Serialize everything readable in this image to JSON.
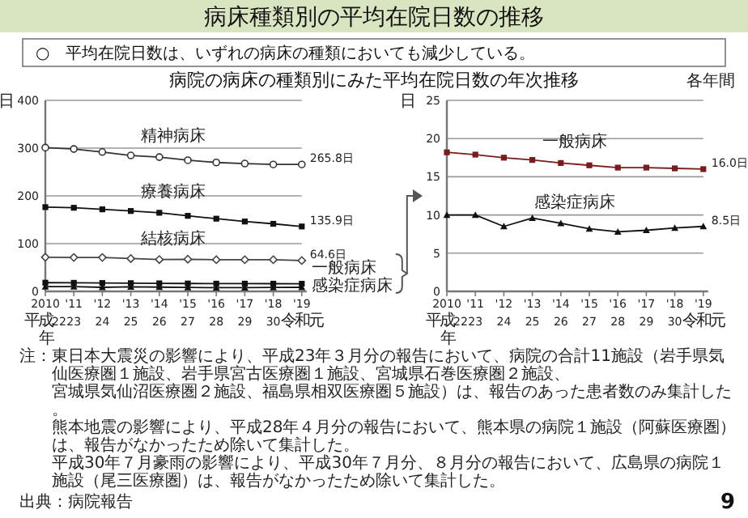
{
  "chart_data": [
    {
      "type": "line",
      "title": "病床種類別の平均在院日数の推移",
      "subtitle": "○　平均在院日数は、いずれの病床の種類においても減少している。",
      "ylabel": "日",
      "annotations": [
        "病院の病床の種類別にみた平均在院日数の年次推移",
        "注：東日本大震災の影響により、平成23年３月分の報告において、病院の合計11施設（岩手県気仙医療圏１施設、岩手県宮古医療圏１施設、宮城県石巻医療圏２施設、",
        "宮城県気仙沼医療圏２施設、福島県相双医療圏５施設）は、報告のあった患者数のみ集計した。",
        "熊本地震の影響により、平成28年４月分の報告において、熊本県の病院１施設（阿蘇医療圏）は、報告がなかったため除いて集計した。",
        "平成30年７月豪雨の影響により、平成30年７月分、８月分の報告において、広島県の病院１施設（尾三医療圏）は、報告がなかったため除いて集計した。",
        "出典：病院報告",
        "9"
      ],
      "categories": [
        "2010\n平成22\n年",
        "'11\n23",
        "'12\n24",
        "'13\n25",
        "'14\n26",
        "'15\n27",
        "'16\n28",
        "'17\n29",
        "'18\n30",
        "'19\n令和元"
      ],
      "ylim": [
        0,
        400
      ],
      "yticks": [
        0,
        100,
        200,
        300,
        400
      ],
      "grid": "y",
      "legend": false,
      "series": [
        {
          "name": "精神病床",
          "color": "#333333",
          "marker": "circle",
          "values": [
            301.0,
            298.1,
            291.9,
            284.7,
            281.2,
            274.7,
            269.9,
            267.7,
            265.8,
            265.8
          ],
          "value_labels": [
            null,
            null,
            null,
            null,
            null,
            null,
            null,
            null,
            null,
            "265.8日"
          ]
        },
        {
          "name": "療養病床",
          "color": "#111111",
          "marker": "square",
          "values": [
            176.4,
            175.1,
            171.8,
            168.3,
            164.6,
            158.2,
            152.2,
            146.3,
            141.5,
            135.9
          ],
          "value_labels": [
            null,
            null,
            null,
            null,
            null,
            null,
            null,
            null,
            null,
            "135.9日"
          ]
        },
        {
          "name": "結核病床",
          "color": "#444444",
          "marker": "diamond",
          "values": [
            71.5,
            71.0,
            71.0,
            68.8,
            66.7,
            67.3,
            66.3,
            66.3,
            66.3,
            64.6
          ],
          "value_labels": [
            null,
            null,
            null,
            null,
            null,
            null,
            null,
            null,
            null,
            "64.6日"
          ]
        },
        {
          "name": "一般病床",
          "color": "#111111",
          "marker": "square",
          "values": [
            18.2,
            17.9,
            17.5,
            17.2,
            16.8,
            16.5,
            16.2,
            16.2,
            16.1,
            16.0
          ]
        },
        {
          "name": "感染症病床",
          "color": "#111111",
          "marker": "triangle",
          "values": [
            10.0,
            10.0,
            8.5,
            9.6,
            8.9,
            8.2,
            7.8,
            8.0,
            8.3,
            8.5
          ]
        }
      ]
    },
    {
      "type": "line",
      "ylabel": "日",
      "annotations": [
        "各年間"
      ],
      "categories": [
        "2010\n平成22\n年",
        "'11\n23",
        "'12\n24",
        "'13\n25",
        "'14\n26",
        "'15\n27",
        "'16\n28",
        "'17\n29",
        "'18\n30",
        "'19\n令和元"
      ],
      "ylim": [
        0,
        25
      ],
      "yticks": [
        0,
        5,
        10,
        15,
        20,
        25
      ],
      "grid": "y",
      "legend": false,
      "series": [
        {
          "name": "一般病床",
          "color": "#7a1c1c",
          "marker": "square",
          "values": [
            18.2,
            17.9,
            17.5,
            17.2,
            16.8,
            16.5,
            16.2,
            16.2,
            16.1,
            16.0
          ],
          "value_labels": [
            null,
            null,
            null,
            null,
            null,
            null,
            null,
            null,
            null,
            "16.0日"
          ]
        },
        {
          "name": "感染症病床",
          "color": "#111111",
          "marker": "triangle",
          "values": [
            10.0,
            10.0,
            8.5,
            9.6,
            8.9,
            8.2,
            7.8,
            8.0,
            8.3,
            8.5
          ],
          "value_labels": [
            null,
            null,
            null,
            null,
            null,
            null,
            null,
            null,
            null,
            "8.5日"
          ]
        }
      ]
    }
  ]
}
